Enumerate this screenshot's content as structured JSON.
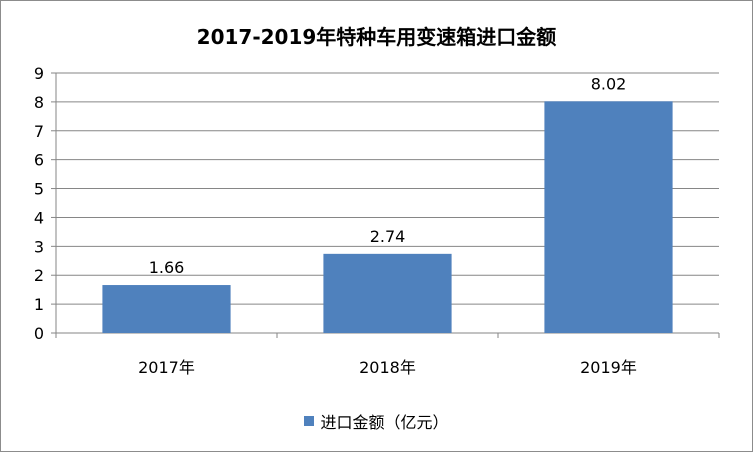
{
  "chart_data": {
    "type": "bar",
    "title": "2017-2019年特种车用变速箱进口金额",
    "categories": [
      "2017年",
      "2018年",
      "2019年"
    ],
    "series": [
      {
        "name": "进口金额（亿元）",
        "values": [
          1.66,
          2.74,
          8.02
        ],
        "color": "#4f81bd"
      }
    ],
    "data_labels": [
      "1.66",
      "2.74",
      "8.02"
    ],
    "y_ticks": [
      "0",
      "1",
      "2",
      "3",
      "4",
      "5",
      "6",
      "7",
      "8",
      "9"
    ],
    "ylim": [
      0,
      9
    ],
    "xlabel": "",
    "ylabel": "",
    "grid": true,
    "legend_position": "bottom"
  }
}
